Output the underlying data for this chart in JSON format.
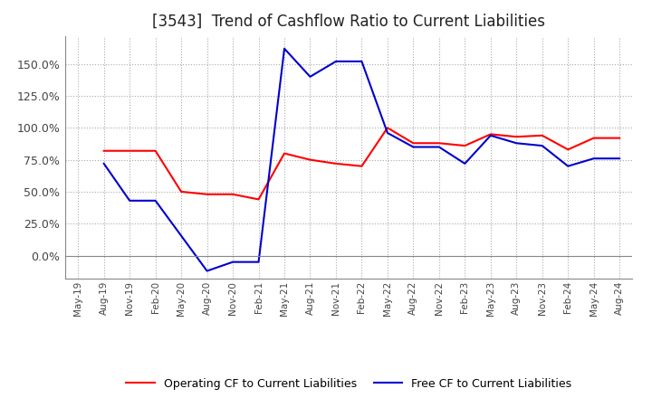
{
  "title": "[3543]  Trend of Cashflow Ratio to Current Liabilities",
  "x_labels": [
    "May-19",
    "Aug-19",
    "Nov-19",
    "Feb-20",
    "May-20",
    "Aug-20",
    "Nov-20",
    "Feb-21",
    "May-21",
    "Aug-21",
    "Nov-21",
    "Feb-22",
    "May-22",
    "Aug-22",
    "Nov-22",
    "Feb-23",
    "May-23",
    "Aug-23",
    "Nov-23",
    "Feb-24",
    "May-24",
    "Aug-24"
  ],
  "operating_cf": [
    null,
    0.82,
    0.82,
    0.82,
    0.5,
    0.48,
    0.48,
    0.44,
    0.8,
    0.75,
    0.72,
    0.7,
    1.0,
    0.88,
    0.88,
    0.86,
    0.95,
    0.93,
    0.94,
    0.83,
    0.92,
    0.92
  ],
  "free_cf": [
    null,
    0.72,
    0.43,
    0.43,
    null,
    -0.12,
    -0.05,
    -0.05,
    1.62,
    1.4,
    1.52,
    1.52,
    0.96,
    0.85,
    0.85,
    0.72,
    0.94,
    0.88,
    0.86,
    0.7,
    0.76,
    0.76
  ],
  "operating_color": "#ff0000",
  "free_color": "#0000cd",
  "ylim": [
    -0.18,
    1.72
  ],
  "yticks": [
    0.0,
    0.25,
    0.5,
    0.75,
    1.0,
    1.25,
    1.5
  ],
  "background_color": "#ffffff",
  "grid_color": "#aaaaaa",
  "title_fontsize": 12
}
